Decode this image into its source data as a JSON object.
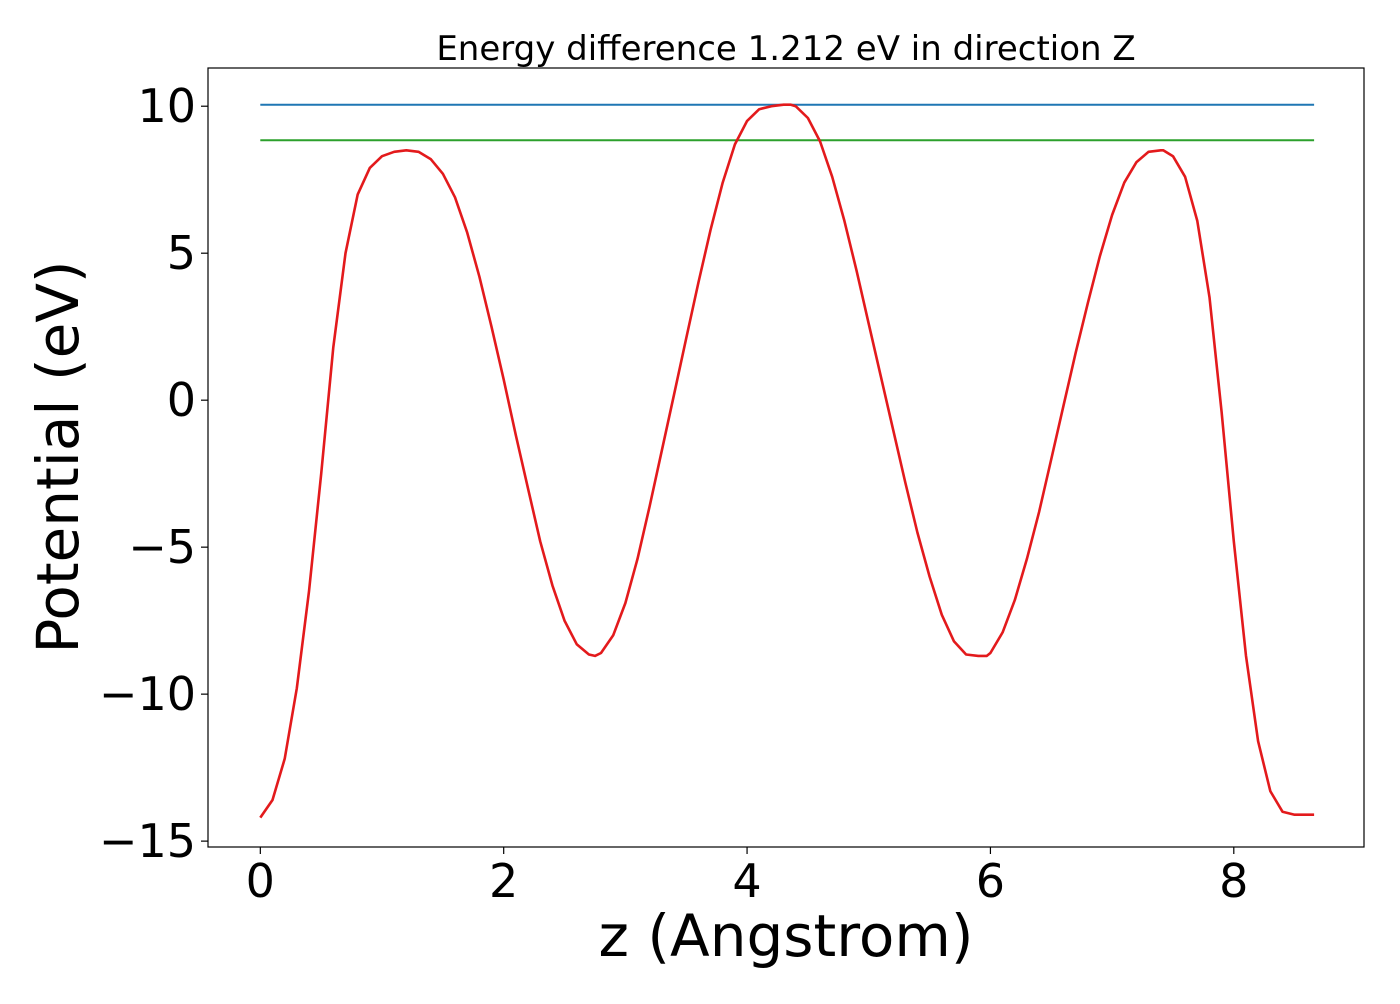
{
  "chart_data": {
    "type": "line",
    "title": "Energy difference 1.212 eV in direction Z",
    "xlabel": "z (Angstrom)",
    "ylabel": "Potential (eV)",
    "xlim": [
      -0.43,
      9.07
    ],
    "ylim": [
      -15.2,
      11.3
    ],
    "xticks": [
      0,
      2,
      4,
      6,
      8
    ],
    "yticks": [
      10,
      5,
      0,
      -5,
      -10,
      -15
    ],
    "ytick_labels": [
      "10",
      "5",
      "0",
      "−5",
      "−10",
      "−15"
    ],
    "grid": false,
    "series": [
      {
        "color": "#1f77b4",
        "x": [
          0.0,
          8.66
        ],
        "y": [
          10.05,
          10.05
        ]
      },
      {
        "color": "#2ca02c",
        "x": [
          0.0,
          8.66
        ],
        "y": [
          8.84,
          8.84
        ]
      },
      {
        "color": "#e31a1c",
        "x": [
          0.0,
          0.1,
          0.2,
          0.3,
          0.4,
          0.5,
          0.6,
          0.7,
          0.8,
          0.9,
          1.0,
          1.1,
          1.2,
          1.3,
          1.4,
          1.5,
          1.6,
          1.7,
          1.8,
          1.9,
          2.0,
          2.1,
          2.2,
          2.3,
          2.4,
          2.5,
          2.6,
          2.7,
          2.75,
          2.8,
          2.9,
          3.0,
          3.1,
          3.2,
          3.3,
          3.4,
          3.5,
          3.6,
          3.7,
          3.8,
          3.9,
          4.0,
          4.1,
          4.2,
          4.3,
          4.36,
          4.4,
          4.5,
          4.6,
          4.7,
          4.8,
          4.9,
          5.0,
          5.1,
          5.2,
          5.3,
          5.4,
          5.5,
          5.6,
          5.7,
          5.8,
          5.9,
          5.97,
          6.0,
          6.1,
          6.2,
          6.3,
          6.4,
          6.5,
          6.6,
          6.7,
          6.8,
          6.9,
          7.0,
          7.1,
          7.2,
          7.3,
          7.4,
          7.42,
          7.5,
          7.6,
          7.7,
          7.8,
          7.9,
          8.0,
          8.1,
          8.2,
          8.3,
          8.4,
          8.5,
          8.6,
          8.66
        ],
        "y": [
          -14.2,
          -13.6,
          -12.2,
          -9.8,
          -6.5,
          -2.5,
          1.8,
          5.0,
          7.0,
          7.9,
          8.3,
          8.45,
          8.5,
          8.45,
          8.2,
          7.7,
          6.9,
          5.7,
          4.2,
          2.5,
          0.7,
          -1.2,
          -3.0,
          -4.8,
          -6.3,
          -7.5,
          -8.3,
          -8.65,
          -8.7,
          -8.6,
          -8.0,
          -6.9,
          -5.4,
          -3.6,
          -1.7,
          0.2,
          2.1,
          4.0,
          5.8,
          7.4,
          8.7,
          9.5,
          9.9,
          10.0,
          10.05,
          10.05,
          10.0,
          9.6,
          8.8,
          7.6,
          6.1,
          4.4,
          2.6,
          0.8,
          -1.0,
          -2.8,
          -4.5,
          -6.0,
          -7.3,
          -8.2,
          -8.65,
          -8.7,
          -8.7,
          -8.6,
          -7.9,
          -6.8,
          -5.4,
          -3.8,
          -2.0,
          -0.2,
          1.6,
          3.3,
          4.9,
          6.3,
          7.4,
          8.1,
          8.45,
          8.5,
          8.5,
          8.3,
          7.6,
          6.1,
          3.5,
          -0.4,
          -4.8,
          -8.7,
          -11.6,
          -13.3,
          -14.0,
          -14.1,
          -14.1,
          -14.1
        ]
      }
    ]
  }
}
